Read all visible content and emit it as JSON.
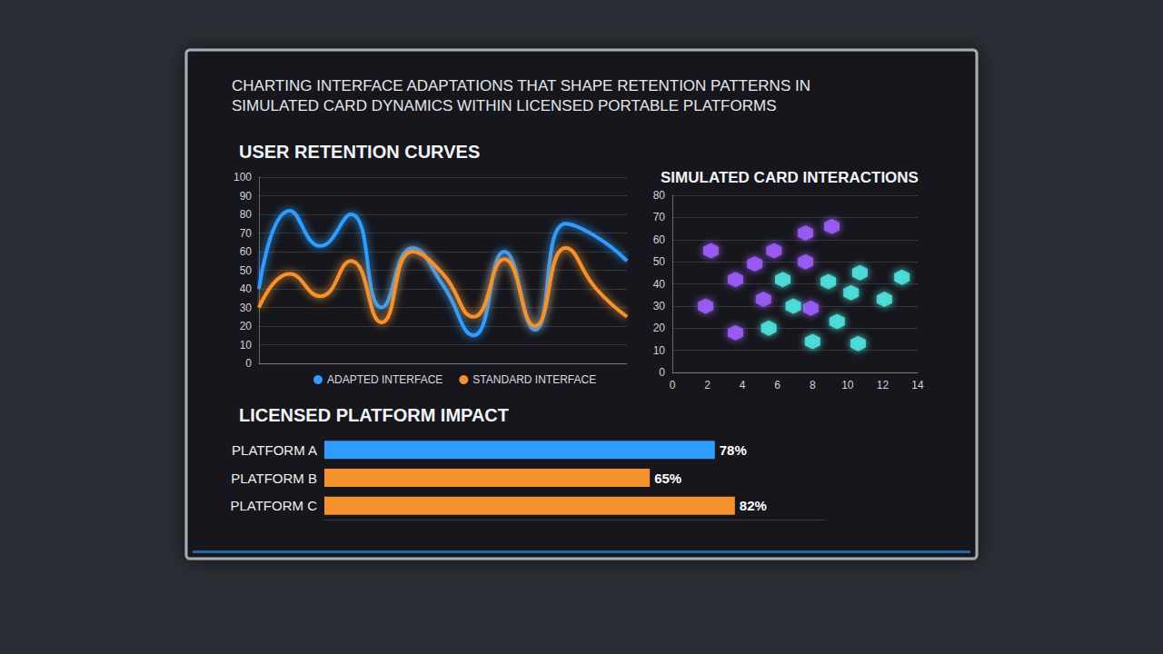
{
  "title": "CHARTING INTERFACE ADAPTATIONS THAT SHAPE RETENTION PATTERNS IN SIMULATED CARD DYNAMICS WITHIN LICENSED PORTABLE PLATFORMS",
  "chart_data": [
    {
      "type": "line",
      "title": "USER RETENTION CURVES",
      "x": [
        0,
        1,
        2,
        3,
        4,
        5,
        6,
        7,
        8,
        9,
        10,
        11,
        12
      ],
      "xlim": [
        0,
        12
      ],
      "ylim": [
        0,
        100
      ],
      "yticks": [
        0,
        10,
        20,
        30,
        40,
        50,
        60,
        70,
        80,
        90,
        100
      ],
      "grid": true,
      "legend": "bottom",
      "tick_labels": "y",
      "series": [
        {
          "name": "ADAPTED INTERFACE",
          "color": "#2e9dff",
          "values": [
            40,
            82,
            63,
            80,
            30,
            62,
            42,
            15,
            60,
            18,
            75,
            68,
            55
          ]
        },
        {
          "name": "STANDARD INTERFACE",
          "color": "#f5922e",
          "values": [
            30,
            48,
            36,
            55,
            22,
            60,
            48,
            25,
            56,
            20,
            62,
            40,
            25
          ]
        }
      ]
    },
    {
      "type": "scatter",
      "title": "SIMULATED CARD INTERACTIONS",
      "xlim": [
        0,
        14
      ],
      "xticks": [
        0,
        2,
        4,
        6,
        8,
        10,
        12,
        14
      ],
      "ylim": [
        0,
        80
      ],
      "yticks": [
        0,
        10,
        20,
        30,
        40,
        50,
        60,
        70,
        80
      ],
      "grid": true,
      "series": [
        {
          "color": "#9b5cf6",
          "marker": "hexagon",
          "x": [
            2.2,
            3.6,
            4.7,
            5.8,
            7.6,
            9.1,
            7.6,
            5.2,
            1.9,
            3.6,
            7.9
          ],
          "values": [
            55,
            42,
            49,
            55,
            63,
            66,
            50,
            33,
            30,
            18,
            29
          ]
        },
        {
          "color": "#4fe0dc",
          "marker": "hexagon",
          "x": [
            6.3,
            6.9,
            8.9,
            10.2,
            10.7,
            12.1,
            13.1,
            5.5,
            8.0,
            9.4,
            10.6
          ],
          "values": [
            42,
            30,
            41,
            36,
            45,
            33,
            43,
            20,
            14,
            23,
            13
          ]
        }
      ]
    },
    {
      "type": "bar",
      "title": "LICENSED PLATFORM IMPACT",
      "orientation": "horizontal",
      "categories": [
        "PLATFORM A",
        "PLATFORM B",
        "PLATFORM C"
      ],
      "values": [
        78,
        65,
        82
      ],
      "value_labels": [
        "78%",
        "65%",
        "82%"
      ],
      "colors": [
        "#2e9dff",
        "#f5922e",
        "#f5922e"
      ],
      "xlim": [
        0,
        100
      ],
      "data_labels": true,
      "tick_labels": "y"
    }
  ]
}
